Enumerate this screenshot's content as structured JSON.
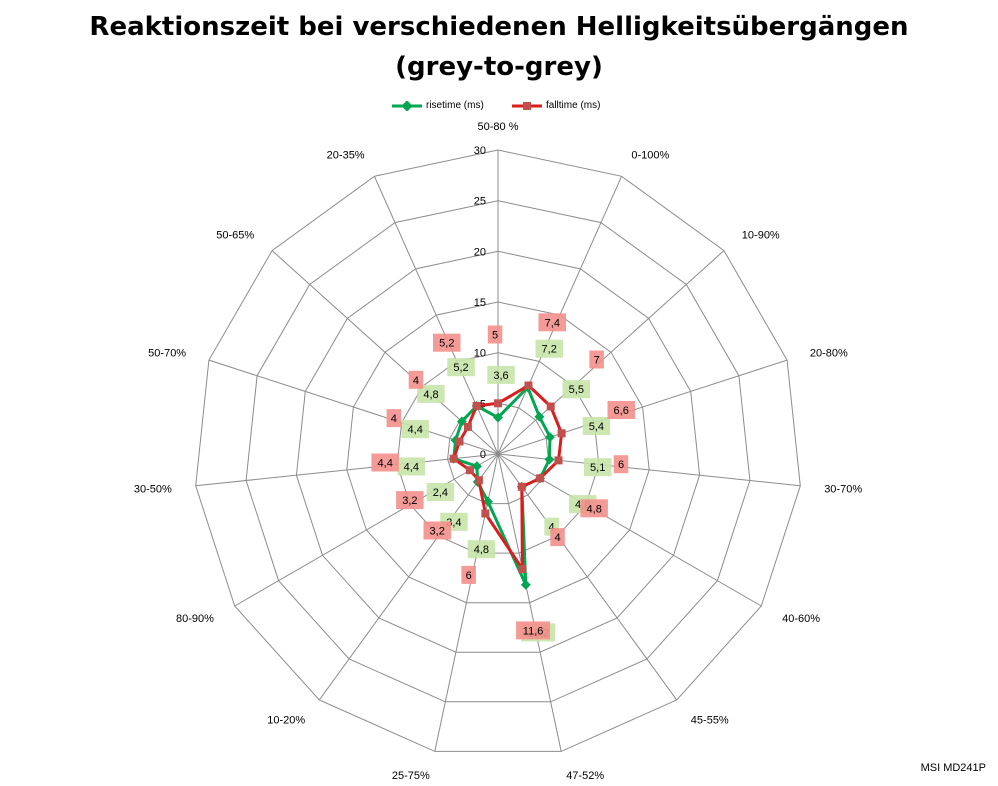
{
  "title_line1": "Reaktionszeit bei verschiedenen Helligkeitsübergängen",
  "title_line2": "(grey-to-grey)",
  "brand_label": "MSI MD241P",
  "chart_data": {
    "type": "radar",
    "title": "Reaktionszeit bei verschiedenen Helligkeitsübergängen (grey-to-grey)",
    "categories": [
      "50-80 %",
      "0-100%",
      "10-90%",
      "20-80%",
      "30-70%",
      "40-60%",
      "45-55%",
      "47-52%",
      "25-75%",
      "10-20%",
      "80-90%",
      "30-50%",
      "50-70%",
      "50-65%",
      "20-35%"
    ],
    "rlim": [
      0,
      30
    ],
    "rticks": [
      "0",
      "5",
      "10",
      "15",
      "20",
      "25",
      "30"
    ],
    "grid": true,
    "legend": "top",
    "series": [
      {
        "name": "risetime (ms)",
        "color": "#00a650",
        "values": [
          3.6,
          7.2,
          5.5,
          5.4,
          5.1,
          4.8,
          4,
          13.2,
          4.8,
          3.4,
          2.4,
          4.4,
          4.4,
          4.8,
          5.2
        ],
        "labels": [
          "3,6",
          "7,2",
          "5,5",
          "5,4",
          "5,1",
          "4,8",
          "4",
          "13,2",
          "4,8",
          "3,4",
          "2,4",
          "4,4",
          "4,4",
          "4,8",
          "5,2"
        ]
      },
      {
        "name": "falltime (ms)",
        "color": "#d81e1e",
        "values": [
          5,
          7.4,
          7,
          6.6,
          6,
          4.8,
          4,
          11.6,
          6,
          3.2,
          3.2,
          4.4,
          4,
          4,
          5.2
        ],
        "labels": [
          "5",
          "7,4",
          "7",
          "6,6",
          "6",
          "4,8",
          "4",
          "11,6",
          "6",
          "3,2",
          "3,2",
          "4,4",
          "4",
          "4",
          "5,2"
        ]
      }
    ]
  }
}
